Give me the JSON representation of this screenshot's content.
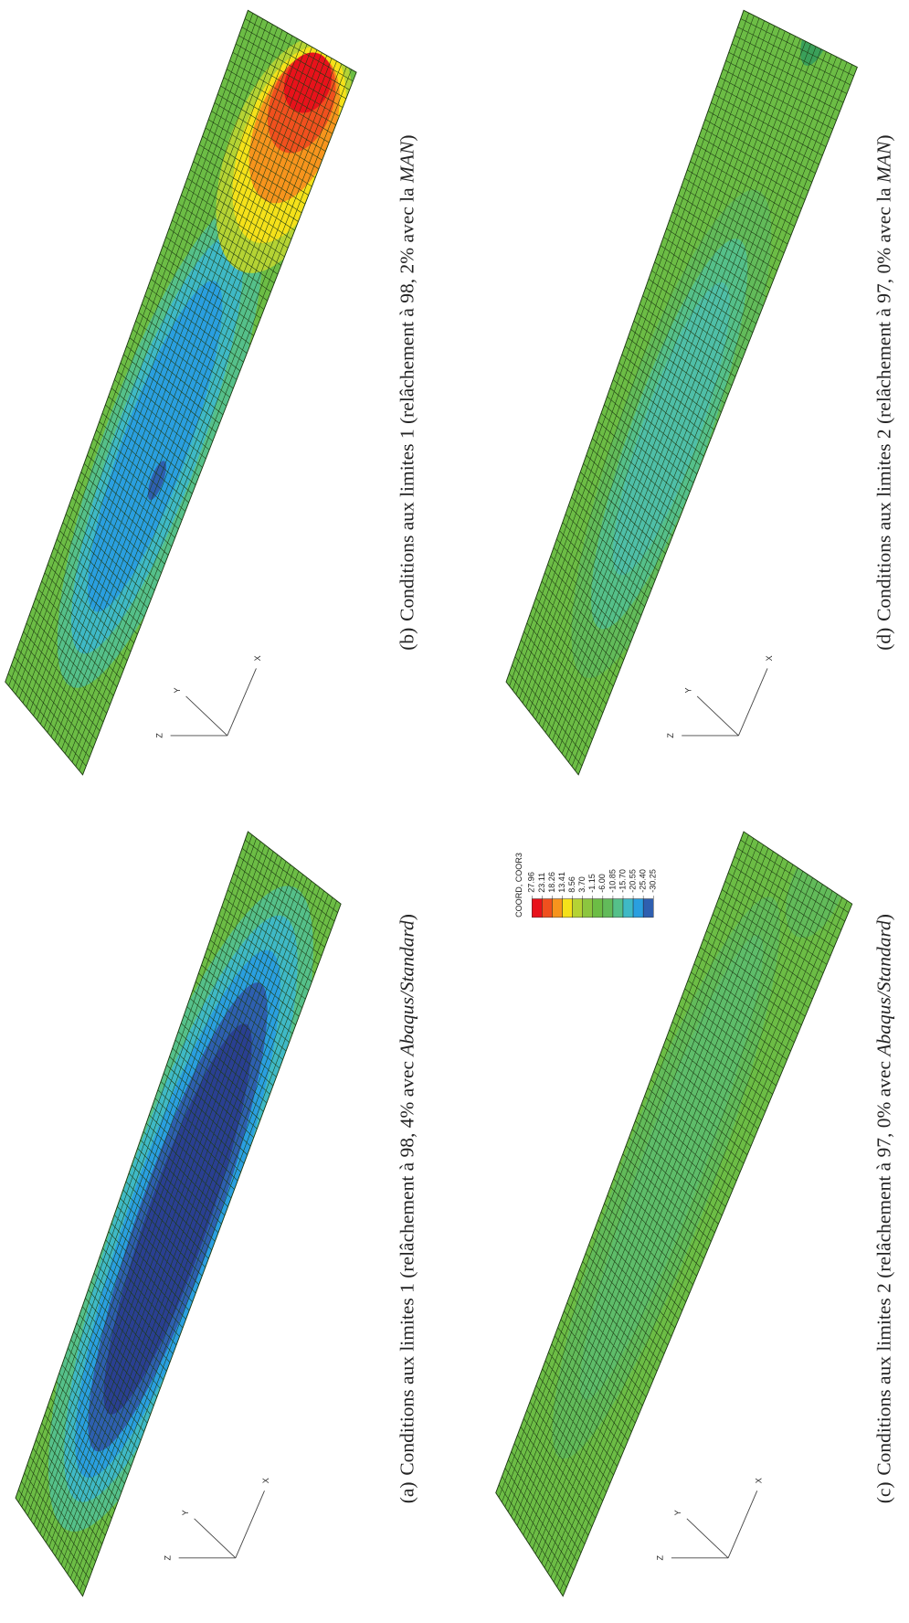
{
  "figure": {
    "panels": [
      {
        "label": "(a)",
        "caption": "Conditions aux limites 1 (relâchement à 98, 4% avec ",
        "caption_emph": "Abaqus/Standard",
        "caption_end": ")",
        "axes": [
          "Z",
          "Y",
          "X"
        ]
      },
      {
        "label": "(b)",
        "caption": "Conditions aux limites 1 (relâchement à 98, 2% avec la ",
        "caption_emph": "MAN",
        "caption_end": ")",
        "axes": [
          "Z",
          "Y",
          "X"
        ]
      },
      {
        "label": "(c)",
        "caption": "Conditions aux limites 2 (relâchement à 97, 0% avec ",
        "caption_emph": "Abaqus/Standard",
        "caption_end": ")",
        "axes": [
          "Z",
          "Y",
          "X"
        ]
      },
      {
        "label": "(d)",
        "caption": "Conditions aux limites 2 (relâchement à 97, 0% avec la ",
        "caption_emph": "MAN",
        "caption_end": ")",
        "axes": [
          "Z",
          "Y",
          "X"
        ]
      }
    ],
    "legend": {
      "title": "COORD, COOR3",
      "values": [
        "27.96",
        "23.11",
        "18.26",
        "13.41",
        "8.56",
        "3.70",
        "-1.15",
        "-6.00",
        "-10.85",
        "-15.70",
        "-20.55",
        "-25.40",
        "-30.25"
      ],
      "colors": [
        "#e8121b",
        "#f0501e",
        "#f7941d",
        "#f5e11a",
        "#b5d334",
        "#8cc63f",
        "#6cbd45",
        "#62bb5a",
        "#55c08a",
        "#3fb9c6",
        "#2a9fe0",
        "#2e5fb0"
      ]
    }
  }
}
